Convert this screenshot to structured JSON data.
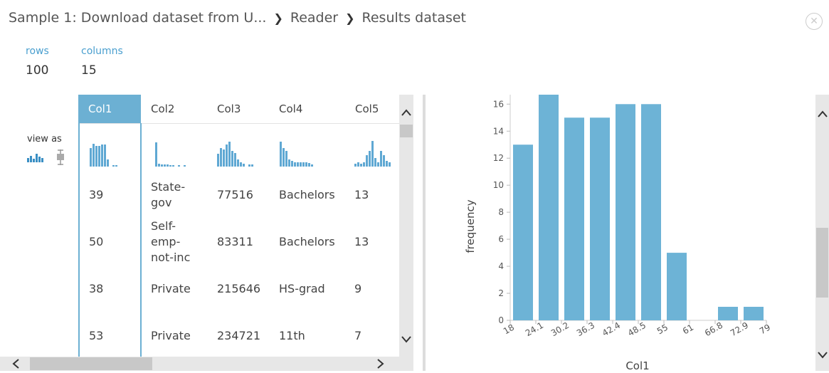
{
  "breadcrumb": {
    "items": [
      "Sample 1: Download dataset from U...",
      "Reader",
      "Results dataset"
    ],
    "separator": "❯"
  },
  "close_icon": "✕",
  "stats": {
    "rows_label": "rows",
    "rows_value": "100",
    "columns_label": "columns",
    "columns_value": "15"
  },
  "view_as_label": "view as",
  "columns": [
    "Col1",
    "Col2",
    "Col3",
    "Col4",
    "Col5"
  ],
  "selected_column": "Col1",
  "rows": [
    [
      "39",
      "State-\ngov",
      "77516",
      "Bachelors",
      "13"
    ],
    [
      "50",
      "Self-\nemp-\nnot-inc",
      "83311",
      "Bachelors",
      "13"
    ],
    [
      "38",
      "Private",
      "215646",
      "HS-grad",
      "9"
    ],
    [
      "53",
      "Private",
      "234721",
      "11th",
      "7"
    ]
  ],
  "colors": {
    "accent": "#6cb0d3",
    "bar": "#6db3d6"
  },
  "chart_data": {
    "type": "bar",
    "xlabel": "Col1",
    "ylabel": "frequency",
    "tick_labels": [
      "18",
      "24.1",
      "30.2",
      "36.3",
      "42.4",
      "48.5",
      "55",
      "61",
      "66.8",
      "72.9",
      "79"
    ],
    "values": [
      13,
      17,
      15,
      15,
      16,
      16,
      5,
      0,
      1,
      1
    ],
    "yticks": [
      0,
      2,
      4,
      6,
      8,
      10,
      12,
      14,
      16
    ],
    "ylim": [
      0,
      16.7
    ]
  }
}
